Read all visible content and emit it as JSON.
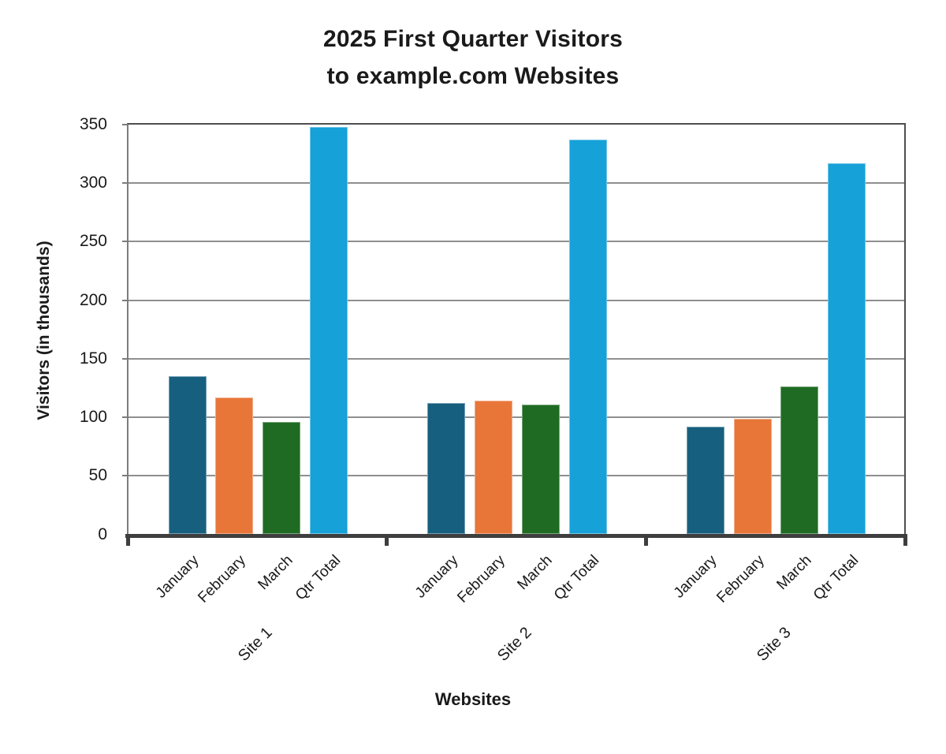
{
  "page": {
    "background": "#ffffff"
  },
  "chart_data": {
    "type": "bar",
    "title": "2025 First Quarter Visitors to example.com Websites",
    "title_lines": [
      "2025 First Quarter Visitors",
      "to example.com Websites"
    ],
    "xlabel": "Websites",
    "ylabel": "Visitors (in thousands)",
    "ylim": [
      0,
      350
    ],
    "yticks": [
      0,
      50,
      100,
      150,
      200,
      250,
      300,
      350
    ],
    "grid": true,
    "legend": false,
    "groups": [
      "Site 1",
      "Site 2",
      "Site 3"
    ],
    "categories": [
      "January",
      "February",
      "March",
      "Qtr Total"
    ],
    "series": [
      {
        "group": "Site 1",
        "values": [
          135,
          117,
          96,
          348
        ]
      },
      {
        "group": "Site 2",
        "values": [
          112,
          114,
          111,
          337
        ]
      },
      {
        "group": "Site 3",
        "values": [
          92,
          99,
          126,
          317
        ]
      }
    ],
    "category_colors": {
      "January": "#175F7F",
      "February": "#E87638",
      "March": "#1F6B23",
      "Qtr Total": "#16A1D8"
    },
    "axis_colors": {
      "frame": "#4E4E4E",
      "left_frame": "#7C7C7C",
      "gridline": "#8F8F8F",
      "axis_line": "#3E3E3E",
      "text": "#1A1A1A"
    }
  }
}
